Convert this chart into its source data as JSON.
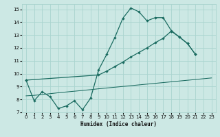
{
  "xlabel": "Humidex (Indice chaleur)",
  "bg_color": "#cce8e4",
  "grid_color": "#aad4cf",
  "line_color": "#1a6b60",
  "xlim": [
    -0.5,
    23.5
  ],
  "ylim": [
    7,
    15.4
  ],
  "xticks": [
    0,
    1,
    2,
    3,
    4,
    5,
    6,
    7,
    8,
    9,
    10,
    11,
    12,
    13,
    14,
    15,
    16,
    17,
    18,
    19,
    20,
    21,
    22,
    23
  ],
  "yticks": [
    7,
    8,
    9,
    10,
    11,
    12,
    13,
    14,
    15
  ],
  "curve1_x": [
    0,
    1,
    2,
    3,
    4,
    5,
    6,
    7,
    8,
    9,
    10,
    11,
    12,
    13,
    14,
    15,
    16,
    17,
    18,
    19,
    20,
    21
  ],
  "curve1_y": [
    9.5,
    7.9,
    8.6,
    8.2,
    7.3,
    7.5,
    7.9,
    7.2,
    8.1,
    10.3,
    11.5,
    12.8,
    14.3,
    15.1,
    14.8,
    14.1,
    14.35,
    14.35,
    13.35,
    12.85,
    12.35,
    11.5
  ],
  "curve2_x": [
    0,
    9,
    10,
    11,
    12,
    13,
    14,
    15,
    16,
    17,
    18,
    19,
    20,
    21
  ],
  "curve2_y": [
    9.5,
    9.9,
    10.2,
    10.55,
    10.9,
    11.3,
    11.65,
    12.0,
    12.4,
    12.75,
    13.3,
    12.85,
    12.35,
    11.5
  ],
  "curve3_x": [
    0,
    1,
    2,
    3,
    4,
    5,
    6,
    7,
    8,
    9,
    10,
    11,
    12,
    13,
    14,
    15,
    16,
    17,
    18,
    19,
    20,
    21,
    22,
    23
  ],
  "curve3_y": [
    8.28,
    8.32,
    8.38,
    8.45,
    8.52,
    8.58,
    8.64,
    8.7,
    8.76,
    8.83,
    8.89,
    8.95,
    9.01,
    9.07,
    9.13,
    9.19,
    9.25,
    9.31,
    9.37,
    9.43,
    9.49,
    9.55,
    9.61,
    9.67
  ]
}
